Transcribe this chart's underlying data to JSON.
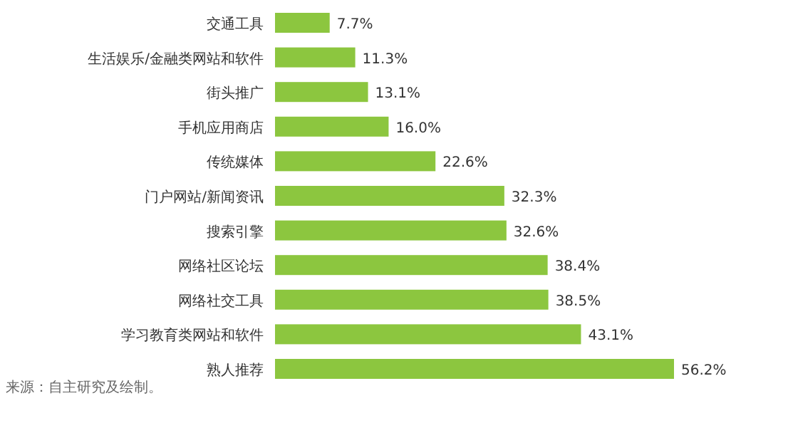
{
  "chart_data": {
    "type": "bar",
    "orientation": "horizontal",
    "color": "#8cc63f",
    "categories": [
      "交通工具",
      "生活娱乐/金融类网站和软件",
      "街头推广",
      "手机应用商店",
      "传统媒体",
      "门户网站/新闻资讯",
      "搜索引擎",
      "网络社区论坛",
      "网络社交工具",
      "学习教育类网站和软件",
      "熟人推荐"
    ],
    "values": [
      7.7,
      11.3,
      13.1,
      16.0,
      22.6,
      32.3,
      32.6,
      38.4,
      38.5,
      43.1,
      56.2
    ],
    "value_labels": [
      "7.7%",
      "11.3%",
      "13.1%",
      "16.0%",
      "22.6%",
      "32.3%",
      "32.6%",
      "38.4%",
      "38.5%",
      "43.1%",
      "56.2%"
    ],
    "annotations": [
      "来源：自主研究及绘制。"
    ]
  }
}
